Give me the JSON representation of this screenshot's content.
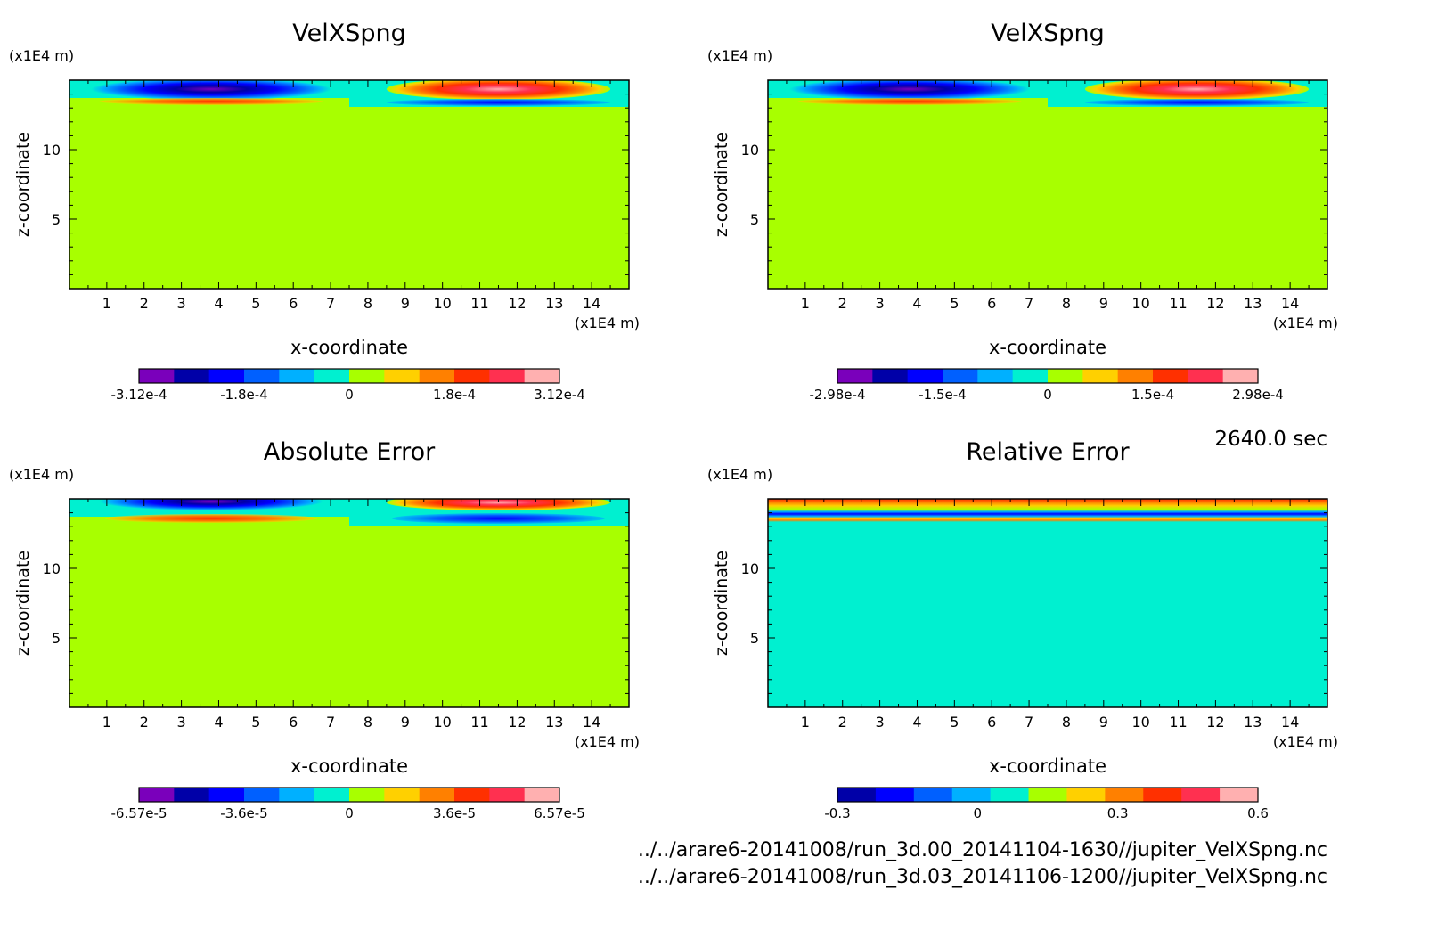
{
  "time_label": "2640.0 sec",
  "files": [
    "../../arare6-20141008/run_3d.00_20141104-1630//jupiter_VelXSpng.nc",
    "../../arare6-20141008/run_3d.03_20141106-1200//jupiter_VelXSpng.nc"
  ],
  "chart_data": [
    {
      "type": "heatmap",
      "title": "VelXSpng",
      "xlabel": "x-coordinate",
      "ylabel": "z-coordinate",
      "x_unit": "(x1E4 m)",
      "y_unit": "(x1E4 m)",
      "xlim": [
        0,
        15
      ],
      "ylim": [
        0,
        15
      ],
      "x_ticks": [
        "1",
        "2",
        "3",
        "4",
        "5",
        "6",
        "7",
        "8",
        "9",
        "10",
        "11",
        "12",
        "13",
        "14"
      ],
      "y_ticks": [
        "5",
        "10"
      ],
      "colorbar": {
        "colors": [
          "#7a00bb",
          "#0000a8",
          "#0000ff",
          "#0060ff",
          "#00b0ff",
          "#00f0d0",
          "#a8ff00",
          "#ffd000",
          "#ff8000",
          "#ff3000",
          "#ff3050",
          "#ffb0b0"
        ],
        "tick_labels": [
          "-3.12e-4",
          "-1.8e-4",
          "0",
          "1.8e-4",
          "3.12e-4"
        ]
      }
    },
    {
      "type": "heatmap",
      "title": "VelXSpng",
      "xlabel": "x-coordinate",
      "ylabel": "z-coordinate",
      "x_unit": "(x1E4 m)",
      "y_unit": "(x1E4 m)",
      "xlim": [
        0,
        15
      ],
      "ylim": [
        0,
        15
      ],
      "x_ticks": [
        "1",
        "2",
        "3",
        "4",
        "5",
        "6",
        "7",
        "8",
        "9",
        "10",
        "11",
        "12",
        "13",
        "14"
      ],
      "y_ticks": [
        "5",
        "10"
      ],
      "colorbar": {
        "colors": [
          "#7a00bb",
          "#0000a8",
          "#0000ff",
          "#0060ff",
          "#00b0ff",
          "#00f0d0",
          "#a8ff00",
          "#ffd000",
          "#ff8000",
          "#ff3000",
          "#ff3050",
          "#ffb0b0"
        ],
        "tick_labels": [
          "-2.98e-4",
          "-1.5e-4",
          "0",
          "1.5e-4",
          "2.98e-4"
        ]
      }
    },
    {
      "type": "heatmap",
      "title": "Absolute Error",
      "xlabel": "x-coordinate",
      "ylabel": "z-coordinate",
      "x_unit": "(x1E4 m)",
      "y_unit": "(x1E4 m)",
      "xlim": [
        0,
        15
      ],
      "ylim": [
        0,
        15
      ],
      "x_ticks": [
        "1",
        "2",
        "3",
        "4",
        "5",
        "6",
        "7",
        "8",
        "9",
        "10",
        "11",
        "12",
        "13",
        "14"
      ],
      "y_ticks": [
        "5",
        "10"
      ],
      "colorbar": {
        "colors": [
          "#7a00bb",
          "#0000a8",
          "#0000ff",
          "#0060ff",
          "#00b0ff",
          "#00f0d0",
          "#a8ff00",
          "#ffd000",
          "#ff8000",
          "#ff3000",
          "#ff3050",
          "#ffb0b0"
        ],
        "tick_labels": [
          "-6.57e-5",
          "-3.6e-5",
          "0",
          "3.6e-5",
          "6.57e-5"
        ]
      }
    },
    {
      "type": "heatmap",
      "title": "Relative Error",
      "xlabel": "x-coordinate",
      "ylabel": "z-coordinate",
      "x_unit": "(x1E4 m)",
      "y_unit": "(x1E4 m)",
      "xlim": [
        0,
        15
      ],
      "ylim": [
        0,
        15
      ],
      "x_ticks": [
        "1",
        "2",
        "3",
        "4",
        "5",
        "6",
        "7",
        "8",
        "9",
        "10",
        "11",
        "12",
        "13",
        "14"
      ],
      "y_ticks": [
        "5",
        "10"
      ],
      "colorbar": {
        "colors": [
          "#0000a8",
          "#0000ff",
          "#0060ff",
          "#00b0ff",
          "#00f0d0",
          "#a8ff00",
          "#ffd000",
          "#ff8000",
          "#ff3000",
          "#ff3050",
          "#ffb0b0"
        ],
        "tick_labels": [
          "-0.3",
          "0",
          "0.3",
          "0.6"
        ]
      }
    }
  ]
}
